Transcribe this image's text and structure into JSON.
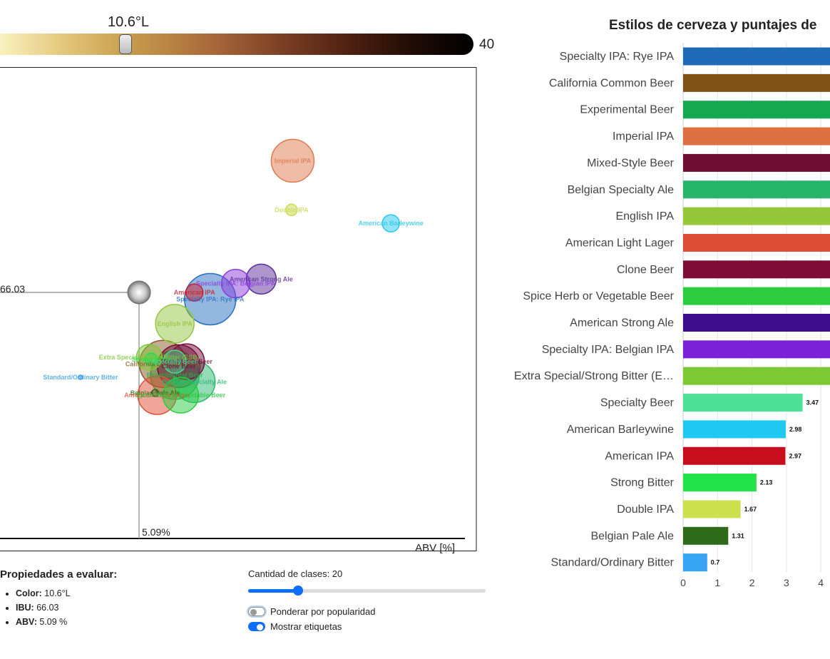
{
  "color_selector": {
    "value_label": "10.6°L",
    "max_label": "40",
    "value": 10.6,
    "max": 40
  },
  "scatter": {
    "x_axis_label": "ABV [%]",
    "selected": {
      "ibu_label": "66.03",
      "abv_label": "5.09%"
    },
    "x_range": [
      2.3,
      13.0
    ],
    "y_range": [
      0,
      140
    ]
  },
  "properties": {
    "title": "Propiedades a evaluar:",
    "items": [
      {
        "name": "Color:",
        "value": "10.6°L"
      },
      {
        "name": "IBU:",
        "value": "66.03"
      },
      {
        "name": "ABV:",
        "value": "5.09 %"
      }
    ]
  },
  "controls": {
    "classes_label": "Cantidad de clases: 20",
    "classes_value": 20,
    "classes_fraction": 0.21,
    "weight_label": "Ponderar por popularidad",
    "weight_on": false,
    "labels_label": "Mostrar etiquetas",
    "labels_on": true
  },
  "bar_chart": {
    "title": "Estilos de cerveza y puntajes de"
  },
  "chart_data": [
    {
      "type": "scatter",
      "xlabel": "ABV [%]",
      "points": [
        {
          "name": "Imperial IPA",
          "abv": 9.0,
          "ibu": 125,
          "size": 30,
          "color": "#e07a4f"
        },
        {
          "name": "Double IPA",
          "abv": 8.97,
          "ibu": 103,
          "size": 8,
          "color": "#c8dc50"
        },
        {
          "name": "American Barleywine",
          "abv": 11.5,
          "ibu": 97,
          "size": 12,
          "color": "#27c8ee"
        },
        {
          "name": "American Strong Ale",
          "abv": 8.2,
          "ibu": 72,
          "size": 21,
          "color": "#5a2e9a"
        },
        {
          "name": "Specialty IPA: Belgian IPA",
          "abv": 7.55,
          "ibu": 70,
          "size": 20,
          "color": "#8a3ddc"
        },
        {
          "name": "Specialty IPA: Rye IPA",
          "abv": 6.9,
          "ibu": 63,
          "size": 36,
          "color": "#2a6fc0"
        },
        {
          "name": "American IPA",
          "abv": 6.5,
          "ibu": 66,
          "size": 12,
          "color": "#cc1f2c"
        },
        {
          "name": "English IPA",
          "abv": 6.0,
          "ibu": 52,
          "size": 27,
          "color": "#94c640"
        },
        {
          "name": "Extra Special/Strong Bitter (ESB)",
          "abv": 5.35,
          "ibu": 37,
          "size": 18,
          "color": "#80c838"
        },
        {
          "name": "Strong Bitter",
          "abv": 5.4,
          "ibu": 36,
          "size": 9,
          "color": "#24dc48"
        },
        {
          "name": "California Common Beer",
          "abv": 5.7,
          "ibu": 34,
          "size": 33,
          "color": "#8a5a2a"
        },
        {
          "name": "Mixed-Style Beer",
          "abv": 6.3,
          "ibu": 35,
          "size": 25,
          "color": "#7a1040"
        },
        {
          "name": "Specialty Beer",
          "abv": 6.0,
          "ibu": 35,
          "size": 16,
          "color": "#4ed890"
        },
        {
          "name": "Clone Beer",
          "abv": 6.1,
          "ibu": 33,
          "size": 30,
          "color": "#6e1038"
        },
        {
          "name": "Experimental Beer",
          "abv": 6.0,
          "ibu": 29,
          "size": 34,
          "color": "#20b048"
        },
        {
          "name": "Belgian Specialty Ale",
          "abv": 6.5,
          "ibu": 26,
          "size": 29,
          "color": "#2ab870"
        },
        {
          "name": "Standard/Ordinary Bitter",
          "abv": 3.6,
          "ibu": 28,
          "size": 3,
          "color": "#38a0f0"
        },
        {
          "name": "Belgian Pale Ale",
          "abv": 5.5,
          "ibu": 21,
          "size": 5,
          "color": "#2e6a18"
        },
        {
          "name": "American Light Lager",
          "abv": 5.55,
          "ibu": 20,
          "size": 27,
          "color": "#e0503a"
        },
        {
          "name": "Spice Herb or Vegetable Beer",
          "abv": 6.15,
          "ibu": 20,
          "size": 25,
          "color": "#28cc40"
        }
      ],
      "selected": {
        "abv": 5.09,
        "ibu": 66.03
      }
    },
    {
      "type": "bar",
      "orientation": "horizontal",
      "title": "Estilos de cerveza y puntajes de",
      "xlim": [
        0,
        4.4
      ],
      "xticks": [
        "0",
        "1",
        "2",
        "3",
        "4"
      ],
      "bars": [
        {
          "label": "Specialty IPA: Rye IPA",
          "value": 4.4,
          "value_label": "",
          "color": "#1f6bb8"
        },
        {
          "label": "California Common Beer",
          "value": 4.4,
          "value_label": "",
          "color": "#7f5217"
        },
        {
          "label": "Experimental Beer",
          "value": 4.4,
          "value_label": "",
          "color": "#16a850"
        },
        {
          "label": "Imperial IPA",
          "value": 4.4,
          "value_label": "",
          "color": "#dd7040"
        },
        {
          "label": "Mixed-Style Beer",
          "value": 4.4,
          "value_label": "",
          "color": "#700e33"
        },
        {
          "label": "Belgian Specialty Ale",
          "value": 4.4,
          "value_label": "",
          "color": "#27b56c"
        },
        {
          "label": "English IPA",
          "value": 4.4,
          "value_label": "",
          "color": "#94c83a"
        },
        {
          "label": "American Light Lager",
          "value": 4.4,
          "value_label": "",
          "color": "#dc4b34"
        },
        {
          "label": "Clone Beer",
          "value": 4.4,
          "value_label": "",
          "color": "#7e0c37"
        },
        {
          "label": "Spice Herb or Vegetable Beer",
          "value": 4.4,
          "value_label": "",
          "color": "#2ecc40"
        },
        {
          "label": "American Strong Ale",
          "value": 4.4,
          "value_label": "",
          "color": "#3c0d8c"
        },
        {
          "label": "Specialty IPA: Belgian IPA",
          "value": 4.4,
          "value_label": "",
          "color": "#7b22d6"
        },
        {
          "label": "Extra Special/Strong Bitter (E…",
          "value": 4.4,
          "value_label": "",
          "color": "#7cc835"
        },
        {
          "label": "Specialty Beer",
          "value": 3.47,
          "value_label": "3.47",
          "color": "#4fe098"
        },
        {
          "label": "American Barleywine",
          "value": 2.98,
          "value_label": "2.98",
          "color": "#1ec8f0"
        },
        {
          "label": "American IPA",
          "value": 2.97,
          "value_label": "2.97",
          "color": "#c80e1e"
        },
        {
          "label": "Strong Bitter",
          "value": 2.13,
          "value_label": "2.13",
          "color": "#22e34a"
        },
        {
          "label": "Double IPA",
          "value": 1.67,
          "value_label": "1.67",
          "color": "#cce050"
        },
        {
          "label": "Belgian Pale Ale",
          "value": 1.31,
          "value_label": "1.31",
          "color": "#2f6a1a"
        },
        {
          "label": "Standard/Ordinary Bitter",
          "value": 0.7,
          "value_label": "0.7",
          "color": "#38a4f4"
        }
      ]
    }
  ]
}
